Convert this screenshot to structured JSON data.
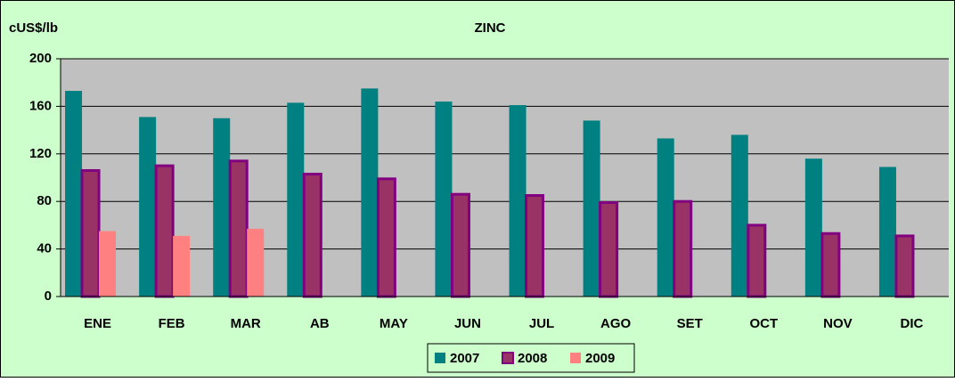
{
  "chart_data": {
    "type": "bar",
    "title": "ZINC",
    "y_label": "cUS$/lb",
    "categories": [
      "ENE",
      "FEB",
      "MAR",
      "AB",
      "MAY",
      "JUN",
      "JUL",
      "AGO",
      "SET",
      "OCT",
      "NOV",
      "DIC"
    ],
    "series": [
      {
        "name": "2007",
        "color": "#008080",
        "values": [
          173,
          151,
          150,
          163,
          175,
          164,
          161,
          148,
          133,
          136,
          116,
          109
        ]
      },
      {
        "name": "2008",
        "color": "#993366",
        "values": [
          106,
          110,
          114,
          103,
          99,
          86,
          85,
          79,
          80,
          60,
          53,
          51
        ]
      },
      {
        "name": "2009",
        "color": "#ff8080",
        "values": [
          55,
          51,
          57,
          null,
          null,
          null,
          null,
          null,
          null,
          null,
          null,
          null
        ]
      }
    ],
    "ylim": [
      0,
      200
    ],
    "yticks": [
      0,
      40,
      80,
      120,
      160,
      200
    ],
    "grid": true,
    "legend": "bottom"
  }
}
